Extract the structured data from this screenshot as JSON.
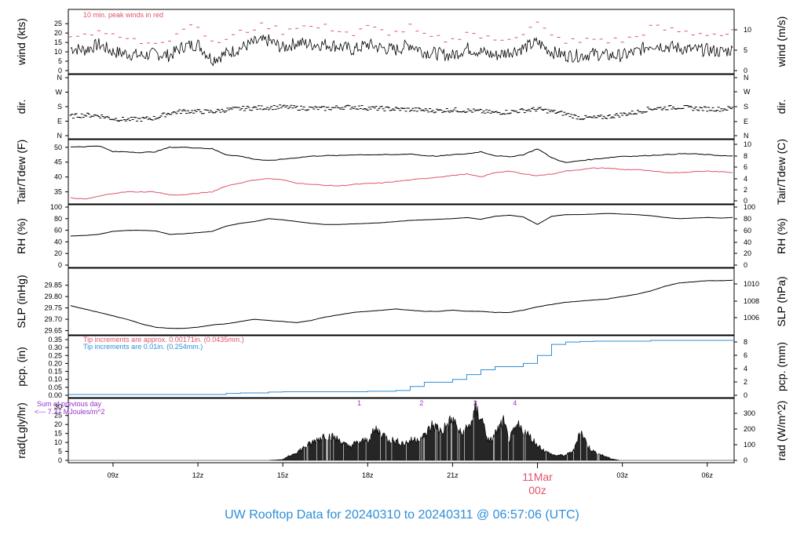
{
  "title": "UW Rooftop Data for 20240310  to  20240311 @ 06:57:06  (UTC)",
  "colors": {
    "primary": "#000000",
    "secondary": "#df536b",
    "blue": "#2c8fd6",
    "purple": "#9932cc",
    "title": "#2c8fd6"
  },
  "x_axis": {
    "ticks": [
      "09z",
      "12z",
      "15z",
      "18z",
      "21z",
      "03z",
      "06z"
    ],
    "tick_hours": [
      9,
      12,
      15,
      18,
      21,
      27,
      30
    ],
    "date_label": "11Mar",
    "date_sub": "00z",
    "date_hour": 24,
    "range_hours": [
      7.42,
      30.95
    ]
  },
  "chart_data": [
    {
      "id": "wind",
      "type": "line",
      "ylabel_left": "wind (kts)",
      "ylabel_right": "wind (m/s)",
      "left_ticks": [
        "0",
        "5",
        "10",
        "15",
        "20",
        "25"
      ],
      "right_ticks": [
        "0",
        "5",
        "10"
      ],
      "ylim": [
        0,
        28
      ],
      "annotation": "10 min. peak winds in red",
      "series": [
        {
          "name": "",
          "x": [
            7.5,
            8.0,
            8.5,
            9.0,
            9.5,
            10.0,
            10.5,
            11.0,
            11.5,
            12.0,
            12.5,
            13.0,
            13.5,
            14.0,
            14.5,
            15.0,
            15.5,
            16.0,
            16.5,
            17.0,
            17.5,
            18.0,
            18.5,
            19.0,
            19.5,
            20.0,
            20.5,
            21.0,
            21.5,
            22.0,
            22.5,
            23.0,
            23.5,
            24.0,
            24.5,
            25.0,
            25.5,
            26.0,
            26.5,
            27.0,
            27.5,
            28.0,
            28.5,
            29.0,
            29.5,
            30.0,
            30.5,
            30.9
          ],
          "values": [
            12,
            11,
            14,
            10,
            9,
            8,
            9,
            8,
            13,
            14,
            6,
            9,
            12,
            15,
            16,
            12,
            15,
            14,
            14,
            13,
            11,
            14,
            12,
            11,
            14,
            10,
            9,
            8,
            12,
            10,
            8,
            10,
            12,
            15,
            10,
            8,
            8,
            9,
            8,
            8,
            10,
            14,
            13,
            12,
            11,
            11,
            10,
            11
          ]
        },
        {
          "name": "",
          "x": [
            7.5,
            8.0,
            8.5,
            9.0,
            9.5,
            10.0,
            10.5,
            11.0,
            11.5,
            12.0,
            12.5,
            13.0,
            13.5,
            14.0,
            14.5,
            15.0,
            15.5,
            16.0,
            16.5,
            17.0,
            17.5,
            18.0,
            18.5,
            19.0,
            19.5,
            20.0,
            20.5,
            21.0,
            21.5,
            22.0,
            22.5,
            23.0,
            23.5,
            24.0,
            24.5,
            25.0,
            25.5,
            26.0,
            26.5,
            27.0,
            27.5,
            28.0,
            28.5,
            29.0,
            29.5,
            30.0,
            30.5,
            30.9
          ],
          "values": [
            20,
            19,
            22,
            18,
            17,
            15,
            16,
            17,
            23,
            25,
            14,
            17,
            20,
            23,
            24,
            21,
            24,
            23,
            23,
            22,
            19,
            23,
            21,
            20,
            23,
            18,
            17,
            16,
            21,
            18,
            16,
            18,
            20,
            25,
            18,
            16,
            15,
            17,
            16,
            16,
            18,
            23,
            22,
            21,
            20,
            20,
            19,
            20
          ]
        }
      ]
    },
    {
      "id": "dir",
      "type": "scatter",
      "ylabel_left": "dir.",
      "ylabel_right": "dir.",
      "left_ticks": [
        "N",
        "E",
        "S",
        "W",
        "N"
      ],
      "right_ticks": [
        "N",
        "E",
        "S",
        "W",
        "N"
      ],
      "ylim": [
        0,
        360
      ],
      "series": [
        {
          "name": "",
          "x": [
            7.5,
            8.0,
            8.5,
            9.0,
            9.5,
            10.0,
            10.5,
            11.0,
            11.5,
            12.0,
            12.5,
            13.0,
            13.5,
            14.0,
            14.5,
            15.0,
            15.5,
            16.0,
            16.5,
            17.0,
            17.5,
            18.0,
            18.5,
            19.0,
            19.5,
            20.0,
            20.5,
            21.0,
            21.5,
            22.0,
            22.5,
            23.0,
            23.5,
            24.0,
            24.5,
            25.0,
            25.5,
            26.0,
            26.5,
            27.0,
            27.5,
            28.0,
            28.5,
            29.0,
            29.5,
            30.0,
            30.5,
            30.9
          ],
          "values": [
            120,
            128,
            125,
            105,
            100,
            102,
            110,
            140,
            152,
            150,
            148,
            160,
            168,
            172,
            175,
            178,
            172,
            170,
            168,
            176,
            178,
            172,
            168,
            165,
            162,
            158,
            155,
            160,
            156,
            150,
            142,
            148,
            156,
            165,
            150,
            135,
            112,
            110,
            118,
            132,
            145,
            168,
            172,
            178,
            170,
            166,
            165,
            170
          ]
        }
      ]
    },
    {
      "id": "temp",
      "type": "line",
      "ylabel_left": "Tair/Tdew (F)",
      "ylabel_right": "Tair/Tdew (C)",
      "left_ticks": [
        "35",
        "40",
        "45",
        "50"
      ],
      "right_ticks": [
        "0",
        "2",
        "4",
        "6",
        "8",
        "10"
      ],
      "ylim": [
        32,
        51
      ],
      "series": [
        {
          "name": "",
          "x": [
            7.5,
            8.0,
            8.5,
            9.0,
            9.5,
            10.0,
            10.5,
            11.0,
            11.5,
            12.0,
            12.5,
            13.0,
            13.5,
            14.0,
            14.5,
            15.0,
            15.5,
            16.0,
            16.5,
            17.0,
            17.5,
            18.0,
            18.5,
            19.0,
            19.5,
            20.0,
            20.5,
            21.0,
            21.5,
            22.0,
            22.5,
            23.0,
            23.5,
            24.0,
            24.5,
            25.0,
            25.5,
            26.0,
            26.5,
            27.0,
            27.5,
            28.0,
            28.5,
            29.0,
            29.5,
            30.0,
            30.5,
            30.9
          ],
          "values": [
            50.2,
            50.2,
            50.5,
            48.5,
            48.5,
            48.2,
            48.5,
            50.0,
            50.0,
            49.8,
            49.5,
            47.5,
            47.0,
            46.0,
            45.5,
            46.0,
            46.5,
            47.0,
            47.2,
            47.2,
            47.5,
            47.5,
            47.5,
            47.5,
            47.8,
            47.2,
            47.0,
            47.5,
            47.8,
            48.5,
            47.2,
            46.8,
            47.5,
            49.5,
            46.5,
            44.8,
            45.5,
            46.0,
            46.5,
            47.0,
            47.0,
            47.3,
            47.5,
            47.8,
            47.8,
            47.5,
            47.2,
            47.0
          ]
        },
        {
          "name": "",
          "x": [
            7.5,
            8.0,
            8.5,
            9.0,
            9.5,
            10.0,
            10.5,
            11.0,
            11.5,
            12.0,
            12.5,
            13.0,
            13.5,
            14.0,
            14.5,
            15.0,
            15.5,
            16.0,
            16.5,
            17.0,
            17.5,
            18.0,
            18.5,
            19.0,
            19.5,
            20.0,
            20.5,
            21.0,
            21.5,
            22.0,
            22.5,
            23.0,
            23.5,
            24.0,
            24.5,
            25.0,
            25.5,
            26.0,
            26.5,
            27.0,
            27.5,
            28.0,
            28.5,
            29.0,
            29.5,
            30.0,
            30.5,
            30.9
          ],
          "values": [
            33.0,
            32.5,
            33.5,
            34.5,
            35.0,
            35.0,
            35.0,
            34.0,
            34.0,
            34.5,
            35.0,
            37.0,
            38.0,
            39.0,
            39.5,
            39.0,
            38.0,
            37.5,
            37.2,
            37.0,
            37.5,
            37.8,
            38.0,
            38.5,
            39.0,
            39.5,
            40.0,
            40.5,
            41.0,
            40.0,
            41.5,
            42.0,
            41.0,
            40.5,
            41.0,
            42.0,
            42.5,
            43.0,
            43.0,
            42.5,
            42.5,
            42.0,
            41.5,
            41.5,
            41.8,
            42.0,
            41.8,
            41.5
          ]
        }
      ]
    },
    {
      "id": "rh",
      "type": "line",
      "ylabel_left": "RH (%)",
      "ylabel_right": "RH (%)",
      "left_ticks": [
        "0",
        "20",
        "40",
        "60",
        "80",
        "100"
      ],
      "right_ticks": [
        "0",
        "20",
        "40",
        "60",
        "80",
        "100"
      ],
      "ylim": [
        0,
        100
      ],
      "series": [
        {
          "name": "",
          "x": [
            7.5,
            8.0,
            8.5,
            9.0,
            9.5,
            10.0,
            10.5,
            11.0,
            11.5,
            12.0,
            12.5,
            13.0,
            13.5,
            14.0,
            14.5,
            15.0,
            15.5,
            16.0,
            16.5,
            17.0,
            17.5,
            18.0,
            18.5,
            19.0,
            19.5,
            20.0,
            20.5,
            21.0,
            21.5,
            22.0,
            22.5,
            23.0,
            23.5,
            24.0,
            24.5,
            25.0,
            25.5,
            26.0,
            26.5,
            27.0,
            27.5,
            28.0,
            28.5,
            29.0,
            29.5,
            30.0,
            30.5,
            30.9
          ],
          "values": [
            50,
            51,
            53,
            58,
            60,
            60,
            59,
            53,
            54,
            56,
            58,
            67,
            72,
            75,
            80,
            78,
            75,
            72,
            70,
            70,
            71,
            72,
            73,
            75,
            77,
            78,
            79,
            80,
            82,
            79,
            84,
            86,
            83,
            70,
            84,
            87,
            87,
            88,
            89,
            88,
            87,
            85,
            82,
            80,
            81,
            82,
            81,
            82
          ]
        }
      ]
    },
    {
      "id": "slp",
      "type": "line",
      "ylabel_left": "SLP (inHg)",
      "ylabel_right": "SLP (hPa)",
      "left_ticks": [
        "29.65",
        "29.70",
        "29.75",
        "29.80",
        "29.85"
      ],
      "right_ticks": [
        "1006",
        "1008",
        "1010"
      ],
      "ylim": [
        29.645,
        29.88
      ],
      "series": [
        {
          "name": "",
          "x": [
            7.5,
            8.0,
            8.5,
            9.0,
            9.5,
            10.0,
            10.5,
            11.0,
            11.5,
            12.0,
            12.5,
            13.0,
            13.5,
            14.0,
            14.5,
            15.0,
            15.5,
            16.0,
            16.5,
            17.0,
            17.5,
            18.0,
            18.5,
            19.0,
            19.5,
            20.0,
            20.5,
            21.0,
            21.5,
            22.0,
            22.5,
            23.0,
            23.5,
            24.0,
            24.5,
            25.0,
            25.5,
            26.0,
            26.5,
            27.0,
            27.5,
            28.0,
            28.5,
            29.0,
            29.5,
            30.0,
            30.5,
            30.9
          ],
          "values": [
            29.76,
            29.745,
            29.73,
            29.715,
            29.7,
            29.68,
            29.665,
            29.66,
            29.66,
            29.665,
            29.675,
            29.68,
            29.69,
            29.7,
            29.695,
            29.69,
            29.685,
            29.695,
            29.71,
            29.72,
            29.73,
            29.735,
            29.74,
            29.745,
            29.74,
            29.735,
            29.735,
            29.74,
            29.735,
            29.735,
            29.73,
            29.73,
            29.74,
            29.755,
            29.765,
            29.775,
            29.78,
            29.785,
            29.79,
            29.8,
            29.81,
            29.825,
            29.845,
            29.86,
            29.865,
            29.87,
            29.87,
            29.872
          ]
        }
      ]
    },
    {
      "id": "pcp",
      "type": "line",
      "ylabel_left": "pcp. (in)",
      "ylabel_right": "pcp. (mm)",
      "left_ticks": [
        "0.00",
        "0.05",
        "0.10",
        "0.15",
        "0.20",
        "0.25",
        "0.30",
        "0.35"
      ],
      "right_ticks": [
        "0",
        "2",
        "4",
        "6",
        "8"
      ],
      "ylim": [
        0,
        0.355
      ],
      "notes": [
        "Tip increments are approx. 0.00171in. (0.0435mm.)",
        "Tip increments are 0.01in. (0.254mm.)"
      ],
      "series": [
        {
          "name": "",
          "x": [
            7.42,
            12.5,
            13.0,
            13.5,
            14.5,
            15.0,
            18.0,
            19.0,
            19.5,
            20.0,
            21.0,
            21.5,
            22.0,
            22.5,
            23.0,
            23.5,
            24.0,
            24.5,
            25.0,
            25.5,
            26.0,
            28.0,
            30.95
          ],
          "values": [
            0.005,
            0.005,
            0.012,
            0.015,
            0.02,
            0.022,
            0.025,
            0.03,
            0.055,
            0.082,
            0.1,
            0.13,
            0.16,
            0.18,
            0.18,
            0.2,
            0.25,
            0.32,
            0.335,
            0.338,
            0.34,
            0.345,
            0.35
          ]
        }
      ]
    },
    {
      "id": "rad",
      "type": "area",
      "ylabel_left": "rad(Lgly/hr)",
      "ylabel_right": "rad (W/m^2)",
      "left_ticks": [
        "0",
        "5",
        "10",
        "15",
        "20",
        "25",
        "30"
      ],
      "right_ticks": [
        "0",
        "100",
        "200",
        "300"
      ],
      "ylim": [
        0,
        31
      ],
      "sum_note": [
        "Sum of previous day",
        "<--- 7.37 MJoules/m^2"
      ],
      "markers": [
        {
          "label": "1",
          "x": 17.7
        },
        {
          "label": "2",
          "x": 19.9
        },
        {
          "label": "3",
          "x": 21.8
        },
        {
          "label": "4",
          "x": 23.2
        }
      ],
      "series": [
        {
          "name": "",
          "x": [
            7.42,
            14.5,
            15.0,
            15.5,
            16.0,
            16.5,
            17.0,
            17.3,
            17.6,
            18.0,
            18.3,
            18.7,
            19.0,
            19.3,
            19.6,
            20.0,
            20.3,
            20.6,
            21.0,
            21.3,
            21.6,
            21.8,
            22.0,
            22.3,
            22.6,
            22.8,
            23.0,
            23.3,
            23.6,
            24.0,
            24.3,
            24.6,
            25.0,
            25.3,
            25.5,
            25.8,
            26.0,
            26.3,
            26.6,
            26.9,
            30.95
          ],
          "values": [
            0,
            0,
            0.5,
            5,
            10,
            15,
            12,
            8,
            10,
            12,
            18,
            13,
            11,
            10,
            12,
            14,
            21,
            17,
            24,
            15,
            20,
            29,
            26,
            10,
            18,
            22,
            12,
            20,
            16,
            9,
            5,
            3,
            3,
            6,
            18,
            8,
            5,
            3,
            1,
            0,
            0
          ]
        }
      ]
    }
  ]
}
